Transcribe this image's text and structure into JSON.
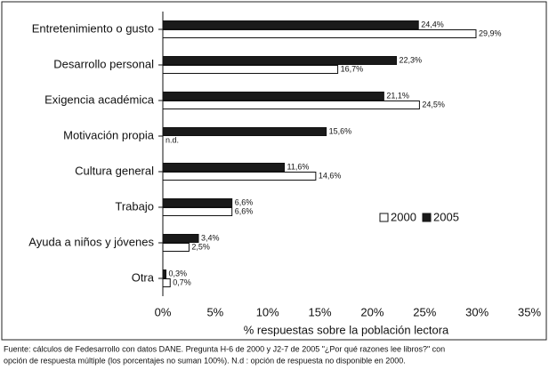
{
  "chart_data": {
    "type": "hbar",
    "categories": [
      "Entretenimiento o gusto",
      "Desarrollo personal",
      "Exigencia académica",
      "Motivación propia",
      "Cultura general",
      "Trabajo",
      "Ayuda a niños y jóvenes",
      "Otra"
    ],
    "series": [
      {
        "name": "2000",
        "color": "#ffffff",
        "values": [
          29.9,
          16.7,
          24.5,
          null,
          14.6,
          6.6,
          2.5,
          0.7
        ],
        "value_labels": [
          "29,9%",
          "16,7%",
          "24,5%",
          "n.d.",
          "14,6%",
          "6,6%",
          "2,5%",
          "0,7%"
        ]
      },
      {
        "name": "2005",
        "color": "#1a1a1a",
        "values": [
          24.4,
          22.3,
          21.1,
          15.6,
          11.6,
          6.6,
          3.4,
          0.3
        ],
        "value_labels": [
          "24,4%",
          "22,3%",
          "21,1%",
          "15,6%",
          "11,6%",
          "6,6%",
          "3,4%",
          "0,3%"
        ]
      }
    ],
    "xlabel": "% respuestas sobre la población lectora",
    "xlim": [
      0,
      35
    ],
    "xticks": [
      {
        "value": 0,
        "label": "0%"
      },
      {
        "value": 5,
        "label": "5%"
      },
      {
        "value": 10,
        "label": "10%"
      },
      {
        "value": 15,
        "label": "15%"
      },
      {
        "value": 20,
        "label": "20%"
      },
      {
        "value": 25,
        "label": "25%"
      },
      {
        "value": 30,
        "label": "30%"
      },
      {
        "value": 35,
        "label": "35%"
      }
    ],
    "footnote": [
      "Fuente: cálculos de Fedesarrollo con datos DANE. Pregunta H-6 de 2000 y J2-7 de 2005 \"¿Por qué razones lee libros?\" con",
      "opción de respuesta múltiple (los porcentajes no suman 100%). N.d : opción de respuesta no disponible en 2000."
    ],
    "legend": "right"
  }
}
